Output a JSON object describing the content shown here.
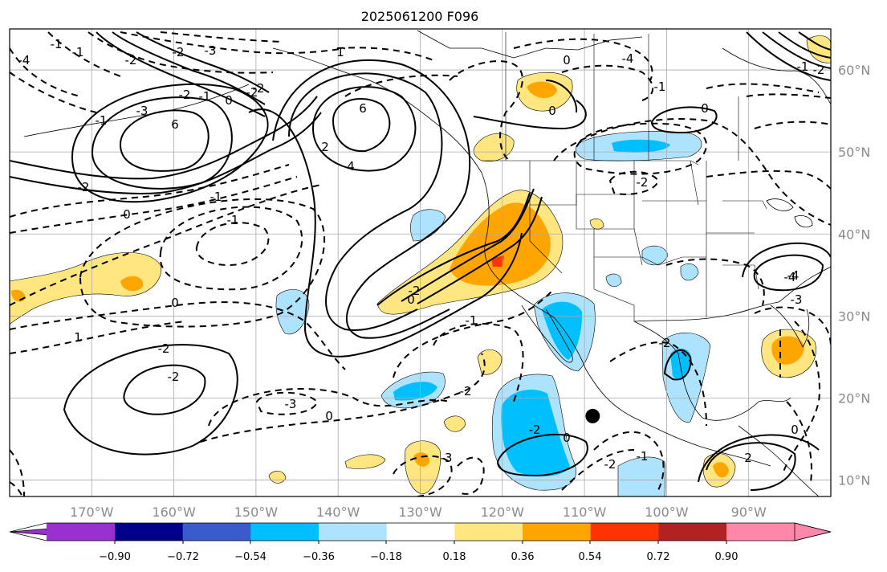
{
  "title": "2025061200 F096",
  "map": {
    "projection": "PlateCarree",
    "lon_range": [
      -180,
      -80
    ],
    "lat_range": [
      8,
      65
    ],
    "lat_ticks": [
      "60°N",
      "50°N",
      "40°N",
      "30°N",
      "20°N",
      "10°N"
    ],
    "lat_values": [
      60,
      50,
      40,
      30,
      20,
      10
    ],
    "lon_ticks": [
      "170°W",
      "160°W",
      "150°W",
      "140°W",
      "130°W",
      "120°W",
      "110°W",
      "100°W",
      "90°W"
    ],
    "lon_values": [
      -170,
      -160,
      -150,
      -140,
      -130,
      -120,
      -110,
      -100,
      -90
    ],
    "grid": true,
    "storm_marker": {
      "lon": -109,
      "lat": 17.8
    }
  },
  "colorbar": {
    "tick_labels": [
      "−0.90",
      "−0.72",
      "−0.54",
      "−0.36",
      "−0.18",
      "0.18",
      "0.36",
      "0.54",
      "0.72",
      "0.90"
    ],
    "bins": [
      "#9b30d0",
      "#00008b",
      "#3a5bcc",
      "#00bfff",
      "#aee3ff",
      "#ffffff",
      "#ffe680",
      "#ffa500",
      "#ff3300",
      "#b22222",
      "#ff88aa"
    ],
    "extend": "both"
  },
  "contour_labels": [
    "-3",
    "-2",
    "-2",
    "-1",
    "-2",
    "-1",
    "6",
    "6",
    "4",
    "2",
    "0",
    "-2",
    "-3",
    "-4",
    "-1",
    "-2",
    "-1",
    "1",
    "-2",
    "0",
    "-1",
    "-1",
    "0",
    "1",
    "-2",
    "-2",
    "-3",
    "0",
    "-2",
    "-1",
    "0",
    "-2",
    "-3",
    "-2",
    "0",
    "-2",
    "-1",
    "-2",
    "2",
    "0",
    "-4",
    "-3",
    "-1",
    "-2",
    "0",
    "0",
    "-1",
    "0",
    "-4",
    "-2",
    "-4"
  ],
  "shading_colors": {
    "positive_light": "#ffe680",
    "positive_mid": "#ffa500",
    "positive_high": "#ff3300",
    "negative_light": "#aee3ff",
    "negative_mid": "#00bfff"
  }
}
